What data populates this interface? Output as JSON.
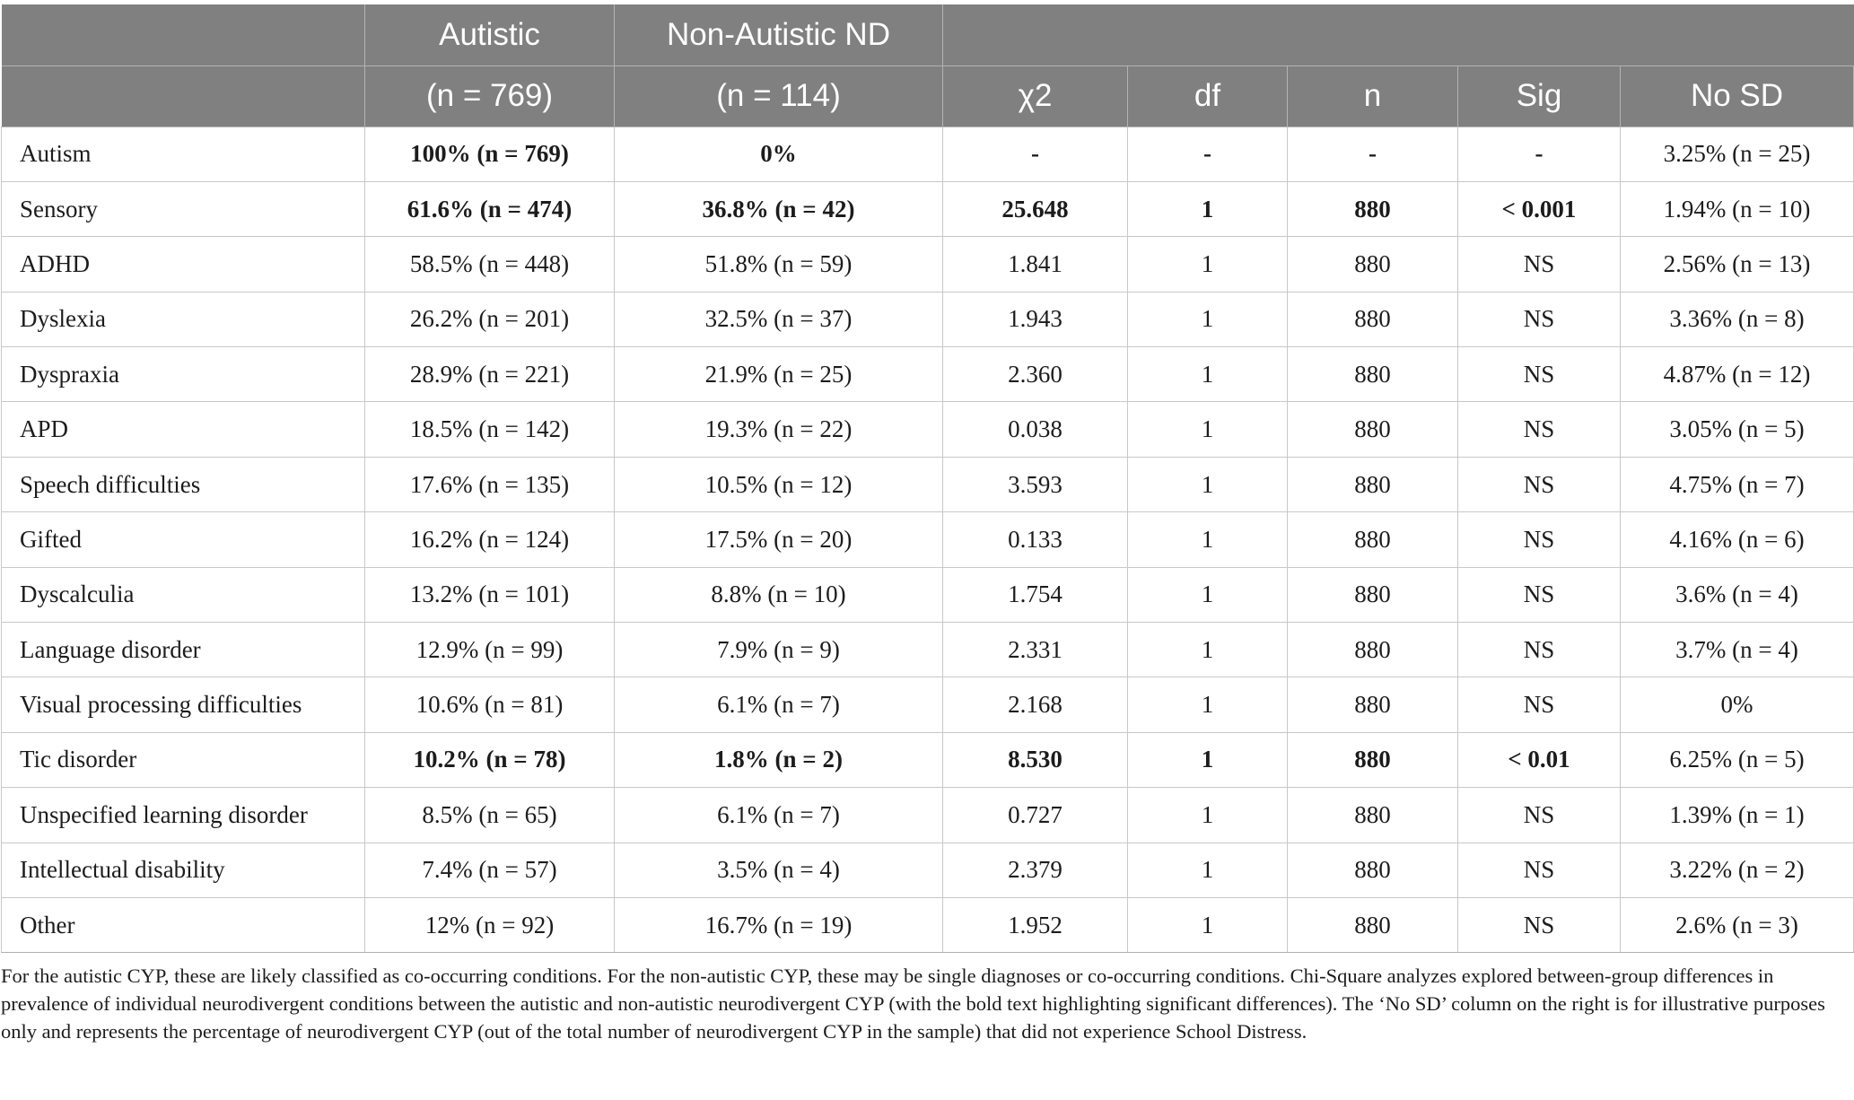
{
  "header": {
    "row1": [
      "",
      "Autistic",
      "Non-Autistic ND",
      "",
      "",
      "",
      "",
      ""
    ],
    "row2": [
      "",
      "(n = 769)",
      "(n = 114)",
      "χ2",
      "df",
      "n",
      "Sig",
      "No SD"
    ]
  },
  "rows": [
    {
      "label": "Autism",
      "bold": true,
      "cells": [
        "100% (n = 769)",
        "0%",
        "-",
        "-",
        "-",
        "-",
        "3.25% (n = 25)"
      ]
    },
    {
      "label": "Sensory",
      "bold": true,
      "cells": [
        "61.6% (n = 474)",
        "36.8% (n = 42)",
        "25.648",
        "1",
        "880",
        "< 0.001",
        "1.94% (n = 10)"
      ]
    },
    {
      "label": "ADHD",
      "bold": false,
      "cells": [
        "58.5% (n = 448)",
        "51.8% (n = 59)",
        "1.841",
        "1",
        "880",
        "NS",
        "2.56% (n = 13)"
      ]
    },
    {
      "label": "Dyslexia",
      "bold": false,
      "cells": [
        "26.2% (n = 201)",
        "32.5% (n = 37)",
        "1.943",
        "1",
        "880",
        "NS",
        "3.36% (n = 8)"
      ]
    },
    {
      "label": "Dyspraxia",
      "bold": false,
      "cells": [
        "28.9% (n = 221)",
        "21.9% (n = 25)",
        "2.360",
        "1",
        "880",
        "NS",
        "4.87% (n = 12)"
      ]
    },
    {
      "label": "APD",
      "bold": false,
      "cells": [
        "18.5% (n = 142)",
        "19.3% (n = 22)",
        "0.038",
        "1",
        "880",
        "NS",
        "3.05% (n = 5)"
      ]
    },
    {
      "label": "Speech difficulties",
      "bold": false,
      "cells": [
        "17.6% (n = 135)",
        "10.5% (n = 12)",
        "3.593",
        "1",
        "880",
        "NS",
        "4.75% (n = 7)"
      ]
    },
    {
      "label": "Gifted",
      "bold": false,
      "cells": [
        "16.2% (n = 124)",
        "17.5% (n = 20)",
        "0.133",
        "1",
        "880",
        "NS",
        "4.16% (n = 6)"
      ]
    },
    {
      "label": "Dyscalculia",
      "bold": false,
      "cells": [
        "13.2% (n = 101)",
        "8.8% (n = 10)",
        "1.754",
        "1",
        "880",
        "NS",
        "3.6% (n = 4)"
      ]
    },
    {
      "label": "Language disorder",
      "bold": false,
      "cells": [
        "12.9% (n = 99)",
        "7.9% (n = 9)",
        "2.331",
        "1",
        "880",
        "NS",
        "3.7% (n = 4)"
      ]
    },
    {
      "label": "Visual processing difficulties",
      "bold": false,
      "cells": [
        "10.6% (n = 81)",
        "6.1% (n = 7)",
        "2.168",
        "1",
        "880",
        "NS",
        "0%"
      ]
    },
    {
      "label": "Tic disorder",
      "bold": true,
      "cells": [
        "10.2% (n = 78)",
        "1.8% (n = 2)",
        "8.530",
        "1",
        "880",
        "< 0.01",
        "6.25% (n = 5)"
      ]
    },
    {
      "label": "Unspecified learning disorder",
      "bold": false,
      "cells": [
        "8.5% (n = 65)",
        "6.1% (n = 7)",
        "0.727",
        "1",
        "880",
        "NS",
        "1.39% (n = 1)"
      ]
    },
    {
      "label": "Intellectual disability",
      "bold": false,
      "cells": [
        "7.4% (n = 57)",
        "3.5% (n = 4)",
        "2.379",
        "1",
        "880",
        "NS",
        "3.22% (n = 2)"
      ]
    },
    {
      "label": "Other",
      "bold": false,
      "cells": [
        "12% (n = 92)",
        "16.7% (n = 19)",
        "1.952",
        "1",
        "880",
        "NS",
        "2.6% (n = 3)"
      ]
    }
  ],
  "footnote": "For the autistic CYP, these are likely classified as co-occurring conditions. For the non-autistic CYP, these may be single diagnoses or co-occurring conditions. Chi-Square analyzes explored between-group differences in prevalence of individual neurodivergent conditions between the autistic and non-autistic neurodivergent CYP (with the bold text highlighting significant differences). The ‘No SD’ column on the right is for illustrative purposes only and represents the percentage of neurodivergent CYP (out of the total number of neurodivergent CYP in the sample) that did not experience School Distress."
}
